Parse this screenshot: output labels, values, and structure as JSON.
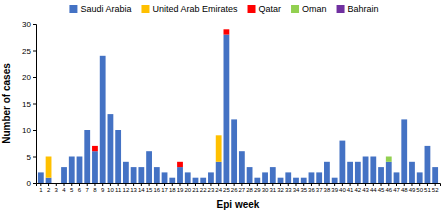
{
  "chart_data": {
    "type": "bar",
    "stacked": true,
    "xlabel": "Epi week",
    "ylabel": "Number of cases",
    "categories": [
      "1",
      "2",
      "3",
      "4",
      "5",
      "6",
      "7",
      "8",
      "9",
      "10",
      "11",
      "12",
      "13",
      "14",
      "15",
      "16",
      "17",
      "18",
      "19",
      "20",
      "21",
      "22",
      "23",
      "24",
      "25",
      "26",
      "27",
      "28",
      "29",
      "30",
      "31",
      "32",
      "33",
      "34",
      "35",
      "36",
      "37",
      "38",
      "39",
      "40",
      "41",
      "42",
      "43",
      "44",
      "45",
      "46",
      "47",
      "48",
      "49",
      "50",
      "51",
      "52"
    ],
    "series": [
      {
        "name": "Saudi Arabia",
        "color": "#4472c4",
        "values": [
          2,
          1,
          0,
          3,
          5,
          5,
          10,
          6,
          24,
          13,
          10,
          4,
          3,
          3,
          6,
          3,
          2,
          1,
          3,
          2,
          1,
          1,
          2,
          4,
          28,
          12,
          6,
          3,
          1,
          2,
          3,
          1,
          2,
          1,
          1,
          2,
          2,
          4,
          1,
          8,
          4,
          4,
          5,
          5,
          3,
          4,
          2,
          12,
          4,
          2,
          7,
          3
        ]
      },
      {
        "name": "United Arab Emirates",
        "color": "#ffc000",
        "values": [
          0,
          4,
          0,
          0,
          0,
          0,
          0,
          0,
          0,
          0,
          0,
          0,
          0,
          0,
          0,
          0,
          0,
          0,
          0,
          0,
          0,
          0,
          0,
          5,
          0,
          0,
          0,
          0,
          0,
          0,
          0,
          0,
          0,
          0,
          0,
          0,
          0,
          0,
          0,
          0,
          0,
          0,
          0,
          0,
          0,
          0,
          0,
          0,
          0,
          0,
          0,
          0
        ]
      },
      {
        "name": "Qatar",
        "color": "#ff0000",
        "values": [
          0,
          0,
          0,
          0,
          0,
          0,
          0,
          1,
          0,
          0,
          0,
          0,
          0,
          0,
          0,
          0,
          0,
          0,
          1,
          0,
          0,
          0,
          0,
          0,
          1,
          0,
          0,
          0,
          0,
          0,
          0,
          0,
          0,
          0,
          0,
          0,
          0,
          0,
          0,
          0,
          0,
          0,
          0,
          0,
          0,
          0,
          0,
          0,
          0,
          0,
          0,
          0
        ]
      },
      {
        "name": "Oman",
        "color": "#92d050",
        "values": [
          0,
          0,
          0,
          0,
          0,
          0,
          0,
          0,
          0,
          0,
          0,
          0,
          0,
          0,
          0,
          0,
          0,
          0,
          0,
          0,
          0,
          0,
          0,
          0,
          0,
          0,
          0,
          0,
          0,
          0,
          0,
          0,
          0,
          0,
          0,
          0,
          0,
          0,
          0,
          0,
          0,
          0,
          0,
          0,
          0,
          1,
          0,
          0,
          0,
          0,
          0,
          0
        ]
      },
      {
        "name": "Bahrain",
        "color": "#7030a0",
        "values": [
          0,
          0,
          0,
          0,
          0,
          0,
          0,
          0,
          0,
          0,
          0,
          0,
          0,
          0,
          0,
          0,
          0,
          0,
          0,
          0,
          0,
          0,
          0,
          0,
          0,
          0,
          0,
          0,
          0,
          0,
          0,
          0,
          0,
          0,
          0,
          0,
          0,
          0,
          0,
          0,
          0,
          0,
          0,
          0,
          0,
          0,
          0,
          0,
          0,
          0,
          0,
          0
        ]
      }
    ],
    "ylim": [
      0,
      30
    ],
    "yticks": [
      0,
      5,
      10,
      15,
      20,
      25,
      30
    ],
    "grid": false,
    "legend": "top"
  }
}
